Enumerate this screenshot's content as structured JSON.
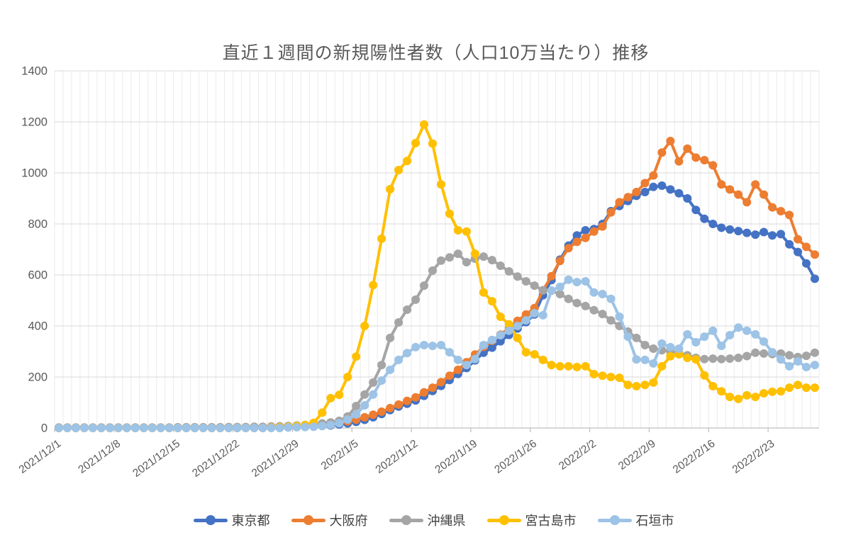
{
  "chart_data": {
    "type": "line",
    "title": "直近１週間の新規陽性者数（人口10万当たり）推移",
    "legend_position": "bottom",
    "grid": "daily-vertical-and-horizontal-major",
    "ylim": [
      0,
      1400
    ],
    "y_ticks": [
      0,
      200,
      400,
      600,
      800,
      1000,
      1200,
      1400
    ],
    "x_tick_labels": [
      "2021/12/1",
      "2021/12/8",
      "2021/12/15",
      "2021/12/22",
      "2021/12/29",
      "2022/1/5",
      "2022/1/12",
      "2022/1/19",
      "2022/1/26",
      "2022/2/2",
      "2022/2/9",
      "2022/2/16",
      "2022/2/23"
    ],
    "x_tick_days": [
      0,
      7,
      14,
      21,
      28,
      35,
      42,
      49,
      56,
      63,
      70,
      77,
      84
    ],
    "colors": {
      "axis_text": "#595959",
      "grid_minor": "#ebebeb",
      "grid_major": "#d9d9d9",
      "axis_line": "#bfbfbf"
    },
    "series": [
      {
        "name": "東京都",
        "color": "#4472C4",
        "values": [
          1,
          1,
          1,
          1,
          1,
          1,
          1,
          1,
          1,
          1,
          1,
          1,
          1,
          1,
          1,
          2,
          2,
          2,
          2,
          2,
          2,
          2,
          2,
          2,
          3,
          3,
          3,
          4,
          4,
          5,
          6,
          8,
          10,
          14,
          18,
          24,
          32,
          42,
          55,
          70,
          84,
          95,
          108,
          126,
          145,
          165,
          188,
          212,
          235,
          265,
          295,
          315,
          340,
          365,
          390,
          415,
          445,
          520,
          580,
          660,
          715,
          755,
          775,
          780,
          800,
          850,
          870,
          890,
          910,
          925,
          945,
          950,
          935,
          920,
          900,
          855,
          820,
          800,
          785,
          778,
          772,
          765,
          758,
          768,
          755,
          760,
          720,
          690,
          645,
          585
        ]
      },
      {
        "name": "大阪府",
        "color": "#ED7D31",
        "values": [
          1,
          1,
          1,
          1,
          1,
          1,
          1,
          1,
          1,
          1,
          1,
          1,
          1,
          1,
          1,
          1,
          2,
          2,
          2,
          2,
          2,
          2,
          2,
          3,
          3,
          3,
          4,
          4,
          5,
          6,
          8,
          12,
          16,
          20,
          26,
          33,
          42,
          52,
          64,
          78,
          92,
          106,
          120,
          140,
          158,
          180,
          205,
          228,
          258,
          288,
          318,
          342,
          366,
          392,
          420,
          445,
          470,
          540,
          595,
          655,
          705,
          730,
          745,
          770,
          790,
          845,
          885,
          905,
          925,
          960,
          990,
          1080,
          1125,
          1045,
          1095,
          1060,
          1050,
          1030,
          955,
          935,
          915,
          885,
          955,
          915,
          865,
          850,
          835,
          740,
          710,
          680
        ]
      },
      {
        "name": "沖縄県",
        "color": "#A5A5A5",
        "values": [
          2,
          2,
          2,
          2,
          2,
          2,
          2,
          2,
          2,
          2,
          2,
          2,
          2,
          2,
          3,
          3,
          3,
          3,
          3,
          3,
          4,
          4,
          4,
          5,
          5,
          6,
          7,
          8,
          10,
          12,
          15,
          18,
          22,
          28,
          45,
          86,
          131,
          178,
          247,
          353,
          414,
          464,
          503,
          558,
          617,
          656,
          669,
          683,
          650,
          664,
          672,
          658,
          636,
          614,
          594,
          575,
          558,
          540,
          538,
          525,
          506,
          490,
          478,
          462,
          447,
          422,
          400,
          378,
          353,
          325,
          311,
          305,
          300,
          294,
          285,
          275,
          270,
          272,
          270,
          272,
          275,
          282,
          295,
          292,
          290,
          292,
          285,
          278,
          283,
          295
        ]
      },
      {
        "name": "宮古島市",
        "color": "#FFC000",
        "values": [
          0,
          0,
          0,
          0,
          0,
          0,
          0,
          0,
          0,
          0,
          0,
          0,
          0,
          0,
          0,
          0,
          0,
          0,
          0,
          0,
          0,
          0,
          0,
          0,
          0,
          2,
          3,
          5,
          8,
          12,
          20,
          60,
          117,
          130,
          200,
          280,
          400,
          560,
          742,
          936,
          1011,
          1047,
          1117,
          1190,
          1115,
          955,
          840,
          775,
          770,
          683,
          531,
          497,
          436,
          406,
          353,
          297,
          289,
          267,
          247,
          242,
          242,
          239,
          242,
          211,
          205,
          200,
          197,
          169,
          164,
          169,
          178,
          242,
          281,
          289,
          275,
          269,
          206,
          164,
          144,
          122,
          114,
          128,
          122,
          136,
          142,
          144,
          158,
          169,
          158,
          158
        ]
      },
      {
        "name": "石垣市",
        "color": "#9DC3E6",
        "values": [
          0,
          0,
          0,
          0,
          0,
          0,
          0,
          0,
          0,
          0,
          0,
          0,
          0,
          0,
          0,
          0,
          0,
          0,
          0,
          0,
          0,
          0,
          0,
          0,
          0,
          0,
          0,
          2,
          3,
          4,
          5,
          8,
          12,
          19,
          33,
          53,
          89,
          131,
          186,
          228,
          267,
          294,
          317,
          325,
          322,
          325,
          297,
          267,
          247,
          270,
          325,
          345,
          364,
          381,
          400,
          422,
          450,
          442,
          539,
          553,
          581,
          572,
          575,
          531,
          525,
          506,
          436,
          358,
          269,
          267,
          253,
          331,
          317,
          311,
          367,
          336,
          358,
          381,
          322,
          364,
          394,
          381,
          367,
          339,
          297,
          269,
          242,
          261,
          239,
          247
        ]
      }
    ]
  }
}
